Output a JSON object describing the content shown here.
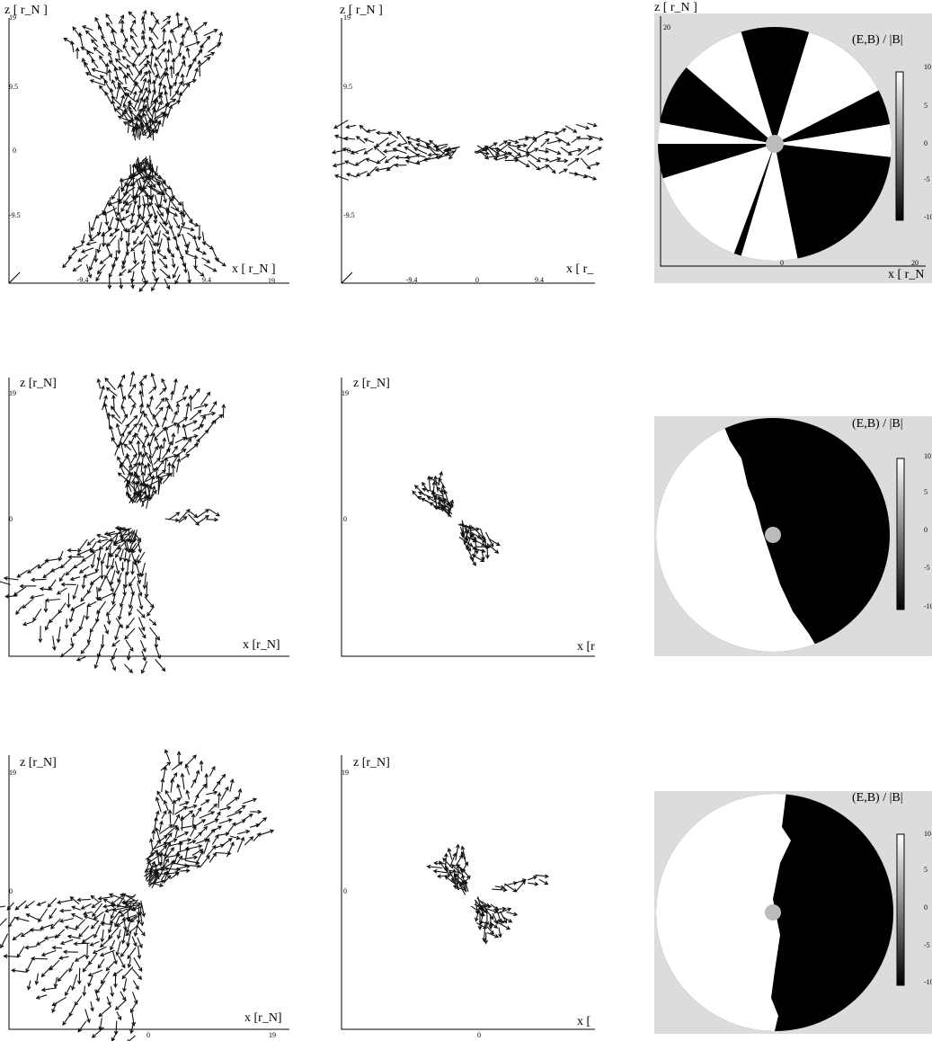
{
  "panels": [
    {
      "z_label": "z [ r_N ]",
      "y_ticks": [
        "19",
        "9.5",
        "0",
        "-9.5"
      ],
      "x_label": "x [ r_N ]",
      "x_ticks": [
        "-9.4",
        "0",
        "9.4",
        "19"
      ]
    },
    {
      "z_label": "z [ r_N ]",
      "y_ticks": [
        "19",
        "9.5",
        "0",
        "-9.5"
      ],
      "x_label": "x [ r_",
      "x_ticks": [
        "-9.4",
        "0",
        "9.4"
      ]
    },
    {
      "z_label": "z [ r_N ]",
      "y_ticks": [
        "20"
      ],
      "x_label": "x [ r_N",
      "x_ticks": [
        "0",
        "20"
      ],
      "colorbar_label": "(E,B) / |B|",
      "colorbar_ticks": [
        "10",
        "5",
        "0",
        "-5",
        "-10"
      ]
    },
    {
      "z_label": "z [r_N]",
      "y_ticks": [
        "19",
        "0"
      ],
      "x_label": "x [r_N]"
    },
    {
      "z_label": "z [r_N]",
      "y_ticks": [
        "19",
        "0"
      ],
      "x_label": "x [r"
    },
    {
      "colorbar_label": "(E,B) / |B|",
      "colorbar_ticks": [
        "10",
        "5",
        "0",
        "-5",
        "-10"
      ]
    },
    {
      "z_label": "z [r_N]",
      "y_ticks": [
        "19",
        "0"
      ],
      "x_label": "x [r_N]",
      "x_ticks": [
        "0",
        "19"
      ]
    },
    {
      "z_label": "z [r_N]",
      "y_ticks": [
        "19",
        "0"
      ],
      "x_label": "x [",
      "x_ticks": [
        "0"
      ]
    },
    {
      "colorbar_label": "(E,B) / |B|",
      "colorbar_ticks": [
        "10",
        "5",
        "0",
        "-5",
        "-10"
      ]
    }
  ]
}
